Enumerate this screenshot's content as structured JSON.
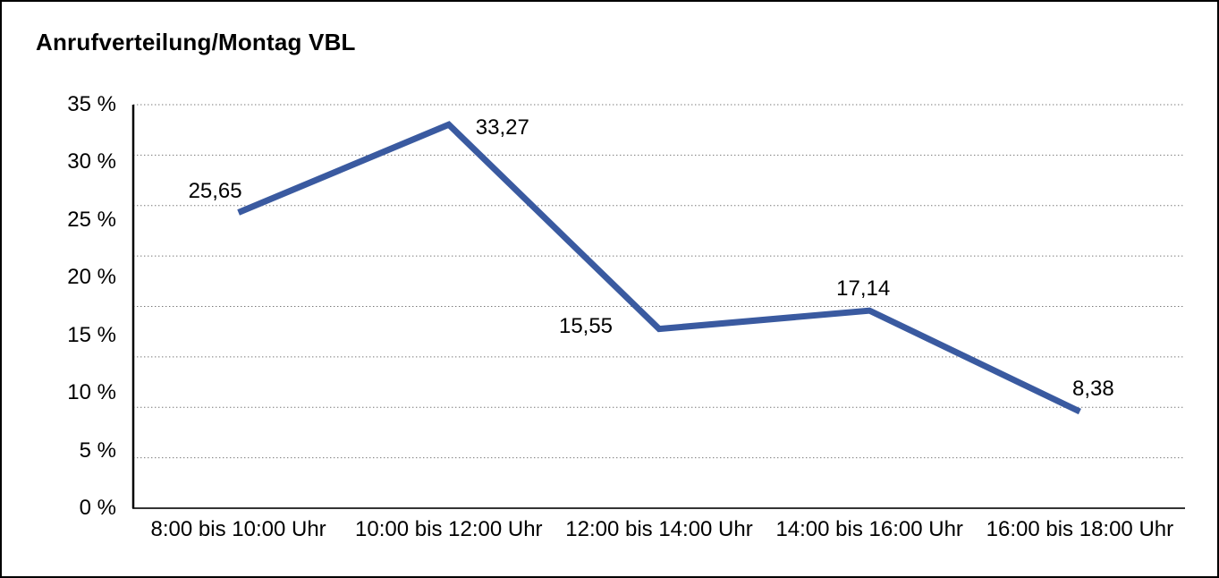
{
  "chart_data": {
    "type": "line",
    "title": "Anrufverteilung/Montag VBL",
    "categories": [
      "8:00 bis 10:00 Uhr",
      "10:00 bis 12:00 Uhr",
      "12:00 bis 14:00 Uhr",
      "14:00 bis 16:00 Uhr",
      "16:00 bis 18:00 Uhr"
    ],
    "values": [
      25.65,
      33.27,
      15.55,
      17.14,
      8.38
    ],
    "value_labels": [
      "25,65",
      "33,27",
      "15,55",
      "17,14",
      "8,38"
    ],
    "y_tick_labels": [
      "0 %",
      "5 %",
      "10 %",
      "15 %",
      "20 %",
      "25 %",
      "30 %",
      "35 %"
    ],
    "ylim": [
      0,
      35
    ],
    "xlabel": "",
    "ylabel": "",
    "grid": true,
    "legend_position": "none",
    "colors": {
      "line": "#3A5AA0",
      "text": "#000000",
      "grid": "#777777",
      "axis": "#333333",
      "background": "#ffffff",
      "border": "#000000"
    }
  }
}
